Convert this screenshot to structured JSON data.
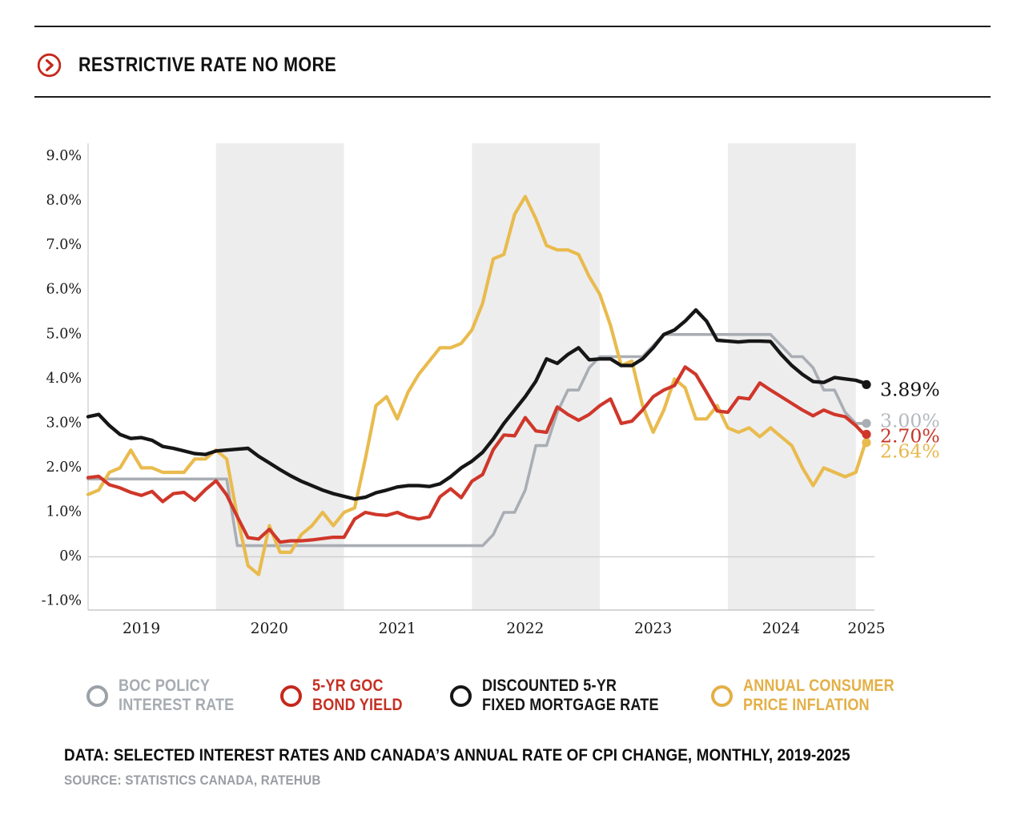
{
  "header": {
    "title": "RESTRICTIVE RATE NO MORE",
    "icon": "arrow-right-circle-icon",
    "icon_color": "#c5281c"
  },
  "chart_data": {
    "type": "line",
    "title": "",
    "xlabel": "",
    "ylabel": "",
    "frequency": "monthly",
    "year_start": 2019,
    "x_range": [
      "2019-01",
      "2025-02"
    ],
    "ylim": [
      -1.2,
      9.35
    ],
    "grid": "zero-line only",
    "band_color": "#ededee",
    "shaded_years": [
      2020,
      2022,
      2024
    ],
    "y_ticks": [
      "9.0%",
      "8.0%",
      "7.0%",
      "6.0%",
      "5.0%",
      "4.0%",
      "3.0%",
      "2.0%",
      "1.0%",
      "0%",
      "-1.0%"
    ],
    "y_tick_values": [
      9,
      8,
      7,
      6,
      5,
      4,
      3,
      2,
      1,
      0,
      -1
    ],
    "x_ticks": [
      "2019",
      "2020",
      "2021",
      "2022",
      "2023",
      "2024",
      "2025"
    ],
    "series": [
      {
        "name": "BOC POLICY INTEREST RATE",
        "color": "#a9aeb4",
        "label_color": "#b4b9be",
        "stroke_width": 3.6,
        "end_label": "3.00%",
        "values": [
          1.75,
          1.75,
          1.75,
          1.75,
          1.75,
          1.75,
          1.75,
          1.75,
          1.75,
          1.75,
          1.75,
          1.75,
          1.75,
          1.75,
          0.25,
          0.25,
          0.25,
          0.25,
          0.25,
          0.25,
          0.25,
          0.25,
          0.25,
          0.25,
          0.25,
          0.25,
          0.25,
          0.25,
          0.25,
          0.25,
          0.25,
          0.25,
          0.25,
          0.25,
          0.25,
          0.25,
          0.25,
          0.25,
          0.5,
          1.0,
          1.0,
          1.5,
          2.5,
          2.5,
          3.25,
          3.75,
          3.75,
          4.25,
          4.5,
          4.5,
          4.5,
          4.5,
          4.5,
          4.75,
          5.0,
          5.0,
          5.0,
          5.0,
          5.0,
          5.0,
          5.0,
          5.0,
          5.0,
          5.0,
          5.0,
          4.75,
          4.5,
          4.5,
          4.25,
          3.75,
          3.75,
          3.25,
          3.0,
          3.0
        ]
      },
      {
        "name": "ANNUAL CONSUMER PRICE INFLATION",
        "color": "#e9bb4e",
        "label_color": "#e7b84d",
        "stroke_width": 4.2,
        "end_label": "2.64%",
        "values": [
          1.4,
          1.5,
          1.9,
          2.0,
          2.4,
          2.0,
          2.0,
          1.9,
          1.9,
          1.9,
          2.2,
          2.2,
          2.4,
          2.2,
          0.9,
          -0.2,
          -0.4,
          0.7,
          0.1,
          0.1,
          0.5,
          0.7,
          1.0,
          0.7,
          1.0,
          1.1,
          2.2,
          3.4,
          3.6,
          3.1,
          3.7,
          4.1,
          4.4,
          4.7,
          4.7,
          4.8,
          5.1,
          5.7,
          6.7,
          6.8,
          7.7,
          8.1,
          7.6,
          7.0,
          6.9,
          6.9,
          6.8,
          6.3,
          5.9,
          5.2,
          4.3,
          4.4,
          3.4,
          2.8,
          3.3,
          4.0,
          3.8,
          3.1,
          3.1,
          3.4,
          2.9,
          2.8,
          2.9,
          2.7,
          2.9,
          2.7,
          2.5,
          2.0,
          1.6,
          2.0,
          1.9,
          1.8,
          1.9,
          2.64
        ]
      },
      {
        "name": "5-YR GOC BOND YIELD",
        "color": "#cf372a",
        "label_color": "#c63527",
        "stroke_width": 4.2,
        "end_label": "2.70%",
        "values": [
          1.78,
          1.81,
          1.62,
          1.55,
          1.45,
          1.38,
          1.47,
          1.24,
          1.42,
          1.45,
          1.27,
          1.51,
          1.71,
          1.39,
          0.9,
          0.43,
          0.4,
          0.62,
          0.33,
          0.36,
          0.36,
          0.38,
          0.41,
          0.44,
          0.44,
          0.85,
          1.0,
          0.95,
          0.93,
          1.0,
          0.9,
          0.85,
          0.9,
          1.35,
          1.53,
          1.33,
          1.7,
          1.85,
          2.41,
          2.74,
          2.72,
          3.13,
          2.83,
          2.8,
          3.37,
          3.2,
          3.07,
          3.2,
          3.4,
          3.55,
          3.0,
          3.05,
          3.3,
          3.6,
          3.75,
          3.85,
          4.27,
          4.1,
          3.7,
          3.28,
          3.25,
          3.58,
          3.55,
          3.91,
          3.75,
          3.6,
          3.45,
          3.3,
          3.17,
          3.3,
          3.2,
          3.15,
          2.95,
          2.7
        ]
      },
      {
        "name": "DISCOUNTED 5-YR FIXED MORTGAGE RATE",
        "color": "#161616",
        "label_color": "#131313",
        "stroke_width": 4.4,
        "end_label": "3.89%",
        "values": [
          3.15,
          3.2,
          2.95,
          2.75,
          2.66,
          2.68,
          2.62,
          2.48,
          2.44,
          2.38,
          2.32,
          2.3,
          2.38,
          2.4,
          2.42,
          2.44,
          2.26,
          2.11,
          1.96,
          1.82,
          1.7,
          1.6,
          1.5,
          1.42,
          1.36,
          1.3,
          1.34,
          1.44,
          1.5,
          1.57,
          1.6,
          1.6,
          1.58,
          1.64,
          1.8,
          2.0,
          2.15,
          2.35,
          2.65,
          3.0,
          3.3,
          3.6,
          3.95,
          4.45,
          4.35,
          4.55,
          4.7,
          4.43,
          4.45,
          4.45,
          4.3,
          4.3,
          4.45,
          4.7,
          5.0,
          5.1,
          5.3,
          5.55,
          5.3,
          4.87,
          4.85,
          4.83,
          4.85,
          4.85,
          4.84,
          4.55,
          4.3,
          4.1,
          3.94,
          3.92,
          4.03,
          4.0,
          3.97,
          3.89
        ]
      }
    ]
  },
  "legend": {
    "items": [
      {
        "line1": "BOC POLICY",
        "line2": "INTEREST RATE",
        "color": "#a6acb1"
      },
      {
        "line1": "5-YR GOC",
        "line2": "BOND YIELD",
        "color": "#c53023"
      },
      {
        "line1": "DISCOUNTED 5-YR",
        "line2": "FIXED MORTGAGE RATE",
        "color": "#161616"
      },
      {
        "line1": "ANNUAL CONSUMER",
        "line2": "PRICE INFLATION",
        "color": "#e3b047"
      }
    ]
  },
  "caption": {
    "text": "DATA: SELECTED INTEREST RATES AND CANADA’S ANNUAL RATE OF CPI CHANGE, MONTHLY, 2019-2025"
  },
  "source": {
    "text": "SOURCE: STATISTICS CANADA, RATEHUB"
  }
}
